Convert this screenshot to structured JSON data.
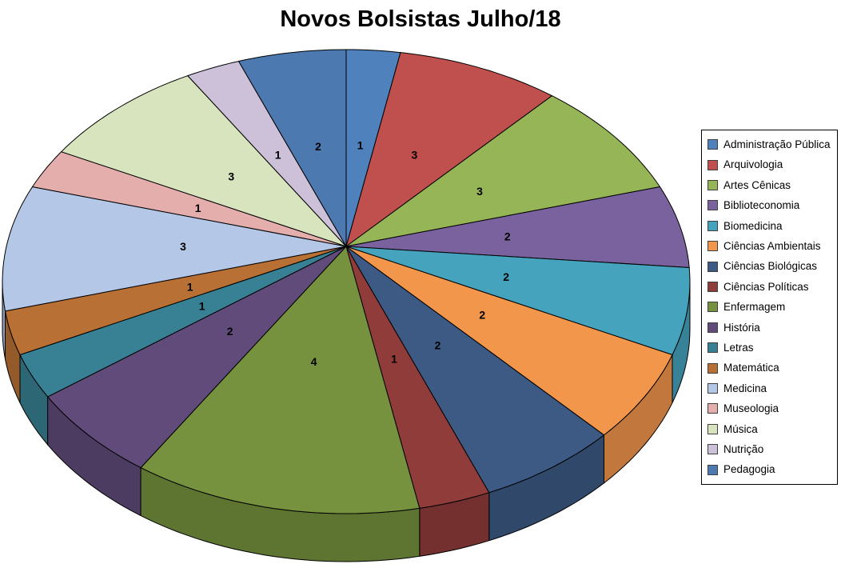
{
  "title": "Novos Bolsistas Julho/18",
  "chart_data": {
    "type": "pie",
    "style": "3d",
    "title": "Novos Bolsistas Julho/18",
    "start_angle_deg": 0,
    "direction": "clockwise",
    "data_labels": "value",
    "legend_position": "right",
    "total": 34,
    "categories": [
      "Administração Pública",
      "Arquivologia",
      "Artes Cênicas",
      "Biblioteconomia",
      "Biomedicina",
      "Ciências Ambientais",
      "Ciências Biológicas",
      "Ciências Políticas",
      "Enfermagem",
      "História",
      "Letras",
      "Matemática",
      "Medicina",
      "Museologia",
      "Música",
      "Nutrição",
      "Pedagogia"
    ],
    "values": [
      1,
      3,
      3,
      2,
      2,
      2,
      2,
      1,
      4,
      2,
      1,
      1,
      3,
      1,
      3,
      1,
      2
    ],
    "colors": [
      "#4F81BD",
      "#C0504D",
      "#96B556",
      "#7A629E",
      "#45A3BD",
      "#F2964B",
      "#3C5A84",
      "#903C3A",
      "#76923E",
      "#604B7A",
      "#388194",
      "#B97034",
      "#B4C7E7",
      "#E4AEAD",
      "#D7E4BD",
      "#CCC1D9",
      "#4C79B0"
    ]
  }
}
